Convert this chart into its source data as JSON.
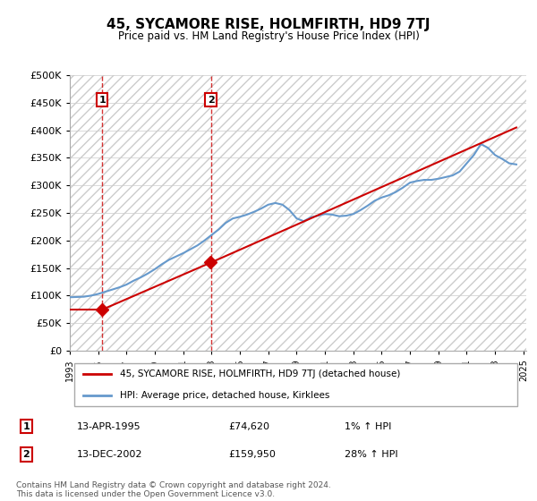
{
  "title": "45, SYCAMORE RISE, HOLMFIRTH, HD9 7TJ",
  "subtitle": "Price paid vs. HM Land Registry's House Price Index (HPI)",
  "ylabel": "",
  "ylim": [
    0,
    500000
  ],
  "yticks": [
    0,
    50000,
    100000,
    150000,
    200000,
    250000,
    300000,
    350000,
    400000,
    450000,
    500000
  ],
  "ytick_labels": [
    "£0",
    "£50K",
    "£100K",
    "£150K",
    "£200K",
    "£250K",
    "£300K",
    "£350K",
    "£400K",
    "£450K",
    "£500K"
  ],
  "sales": [
    {
      "date": "1995-04-13",
      "price": 74620,
      "label": "1"
    },
    {
      "date": "2002-12-13",
      "price": 159950,
      "label": "2"
    }
  ],
  "sale_annotations": [
    {
      "label": "1",
      "date": "13-APR-1995",
      "price": "£74,620",
      "hpi": "1% ↑ HPI"
    },
    {
      "label": "2",
      "date": "13-DEC-2002",
      "price": "£159,950",
      "hpi": "28% ↑ HPI"
    }
  ],
  "property_line_color": "#cc0000",
  "hpi_line_color": "#6699cc",
  "property_label": "45, SYCAMORE RISE, HOLMFIRTH, HD9 7TJ (detached house)",
  "hpi_label": "HPI: Average price, detached house, Kirklees",
  "footer": "Contains HM Land Registry data © Crown copyright and database right 2024.\nThis data is licensed under the Open Government Licence v3.0.",
  "background_color": "#ffffff",
  "hatch_color": "#cccccc",
  "grid_color": "#cccccc",
  "vline_color": "#cc0000",
  "hpi_data_x": [
    1993.0,
    1993.5,
    1994.0,
    1994.5,
    1995.0,
    1995.5,
    1996.0,
    1996.5,
    1997.0,
    1997.5,
    1998.0,
    1998.5,
    1999.0,
    1999.5,
    2000.0,
    2000.5,
    2001.0,
    2001.5,
    2002.0,
    2002.5,
    2003.0,
    2003.5,
    2004.0,
    2004.5,
    2005.0,
    2005.5,
    2006.0,
    2006.5,
    2007.0,
    2007.5,
    2008.0,
    2008.5,
    2009.0,
    2009.5,
    2010.0,
    2010.5,
    2011.0,
    2011.5,
    2012.0,
    2012.5,
    2013.0,
    2013.5,
    2014.0,
    2014.5,
    2015.0,
    2015.5,
    2016.0,
    2016.5,
    2017.0,
    2017.5,
    2018.0,
    2018.5,
    2019.0,
    2019.5,
    2020.0,
    2020.5,
    2021.0,
    2021.5,
    2022.0,
    2022.5,
    2023.0,
    2023.5,
    2024.0,
    2024.5
  ],
  "hpi_data_y": [
    97000,
    97500,
    98000,
    100000,
    103000,
    107000,
    111000,
    115000,
    120000,
    127000,
    133000,
    140000,
    148000,
    157000,
    165000,
    171000,
    177000,
    184000,
    191000,
    200000,
    210000,
    220000,
    232000,
    240000,
    243000,
    247000,
    252000,
    258000,
    265000,
    268000,
    265000,
    255000,
    240000,
    235000,
    242000,
    245000,
    248000,
    247000,
    244000,
    245000,
    248000,
    255000,
    263000,
    272000,
    278000,
    282000,
    288000,
    296000,
    305000,
    308000,
    310000,
    310000,
    312000,
    315000,
    318000,
    325000,
    340000,
    355000,
    375000,
    368000,
    355000,
    348000,
    340000,
    338000
  ],
  "property_data_x": [
    1993.0,
    1995.29,
    2002.95,
    2024.5
  ],
  "property_data_y": [
    74620,
    74620,
    159950,
    405000
  ],
  "xlim_start": 1993.0,
  "xlim_end": 2025.2
}
